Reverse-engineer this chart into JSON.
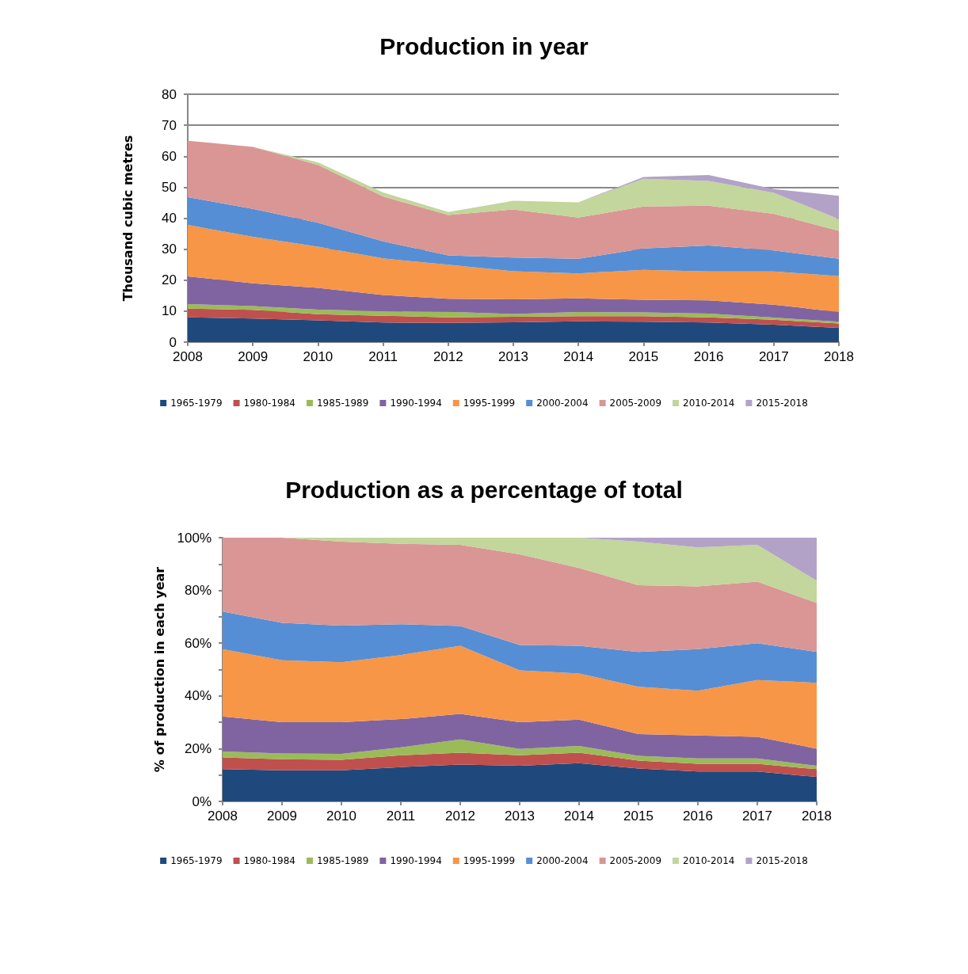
{
  "chart_data": [
    {
      "type": "area",
      "title": "Production in year",
      "ylabel": "Thousand cubic metres",
      "categories": [
        "2008",
        "2009",
        "2010",
        "2011",
        "2012",
        "2013",
        "2014",
        "2015",
        "2016",
        "2017",
        "2018"
      ],
      "stacked": true,
      "ylim": [
        0,
        80
      ],
      "yticks": [
        0,
        10,
        20,
        30,
        40,
        50,
        60,
        70,
        80
      ],
      "grid": "y",
      "legend": "bottom",
      "series": [
        {
          "name": "1965-1979",
          "color": "#1f497d",
          "values": [
            8,
            7.6,
            7,
            6.3,
            6.2,
            6.4,
            6.7,
            6.6,
            6.3,
            5.6,
            4.6
          ]
        },
        {
          "name": "1980-1984",
          "color": "#c0504d",
          "values": [
            2.8,
            2.8,
            2,
            2.2,
            1.8,
            1.8,
            1.7,
            1.8,
            1.7,
            1.6,
            1.4
          ]
        },
        {
          "name": "1985-1989",
          "color": "#9bbb59",
          "values": [
            1.5,
            1.2,
            1.5,
            1.5,
            1.8,
            0.9,
            1.3,
            1.2,
            1.2,
            0.7,
            0.6
          ]
        },
        {
          "name": "1990-1994",
          "color": "#8064a2",
          "values": [
            8.9,
            7.4,
            7,
            5.2,
            4.2,
            4.7,
            4.4,
            4.1,
            4.3,
            4.2,
            3.1
          ]
        },
        {
          "name": "1995-1999",
          "color": "#f79646",
          "values": [
            16.6,
            15,
            13.3,
            11.8,
            11,
            9.1,
            8.1,
            9.6,
            9.3,
            10.7,
            11.6
          ]
        },
        {
          "name": "2000-2004",
          "color": "#558ed5",
          "values": [
            9,
            9,
            7.7,
            5.5,
            3,
            4.4,
            4.7,
            6.9,
            8.4,
            6.8,
            5.6
          ]
        },
        {
          "name": "2005-2009",
          "color": "#d99694",
          "values": [
            18.2,
            20,
            18.7,
            14.5,
            13,
            15.5,
            13.3,
            13.6,
            12.8,
            11.8,
            9
          ]
        },
        {
          "name": "2010-2014",
          "color": "#c3d69b",
          "values": [
            0,
            0,
            0.8,
            1.3,
            1,
            2.8,
            4.9,
            8.9,
            8,
            6.8,
            3.8
          ]
        },
        {
          "name": "2015-2018",
          "color": "#b2a2c7",
          "values": [
            0,
            0,
            0,
            0,
            0,
            0,
            0,
            0.6,
            1.9,
            1.2,
            7.5
          ]
        }
      ]
    },
    {
      "type": "area",
      "title": "Production as a percentage of total",
      "ylabel": "% of production in each year",
      "categories": [
        "2008",
        "2009",
        "2010",
        "2011",
        "2012",
        "2013",
        "2014",
        "2015",
        "2016",
        "2017",
        "2018"
      ],
      "stacked": true,
      "ylim": [
        0,
        100
      ],
      "yticks": [
        {
          "value": 0,
          "label": "0%"
        },
        {
          "value": 10,
          "label": null
        },
        {
          "value": 20,
          "label": "20%"
        },
        {
          "value": 30,
          "label": null
        },
        {
          "value": 40,
          "label": "40%"
        },
        {
          "value": 50,
          "label": null
        },
        {
          "value": 60,
          "label": "60%"
        },
        {
          "value": 70,
          "label": null
        },
        {
          "value": 80,
          "label": "80%"
        },
        {
          "value": 90,
          "label": null
        },
        {
          "value": 100,
          "label": "100%"
        }
      ],
      "grid": false,
      "legend": "bottom",
      "series": [
        {
          "name": "1965-1979",
          "color": "#1f497d",
          "values": [
            12.2,
            11.8,
            11.8,
            13,
            14,
            13.5,
            14.5,
            12.5,
            11.3,
            11.3,
            9.3
          ]
        },
        {
          "name": "1980-1984",
          "color": "#c0504d",
          "values": [
            4.5,
            4.2,
            4,
            4.5,
            4.5,
            4,
            4,
            3,
            3,
            3,
            2.9
          ]
        },
        {
          "name": "1985-1989",
          "color": "#9bbb59",
          "values": [
            2.2,
            2.2,
            2.2,
            3,
            5,
            2.4,
            2.5,
            1.8,
            2,
            2,
            1.3
          ]
        },
        {
          "name": "1990-1994",
          "color": "#8064a2",
          "values": [
            13.3,
            11.8,
            12,
            10.7,
            9.7,
            10.1,
            10,
            8.2,
            8.7,
            8.2,
            6.5
          ]
        },
        {
          "name": "1995-1999",
          "color": "#f79646",
          "values": [
            25.5,
            23.5,
            22.8,
            24.3,
            25.8,
            19.7,
            17.5,
            18,
            17,
            21.5,
            25
          ]
        },
        {
          "name": "2000-2004",
          "color": "#558ed5",
          "values": [
            14.3,
            14.2,
            13.9,
            11.7,
            7.5,
            9.6,
            10.5,
            13.2,
            15.7,
            14,
            11.7
          ]
        },
        {
          "name": "2005-2009",
          "color": "#d99694",
          "values": [
            28,
            32.3,
            31.8,
            30.5,
            30.8,
            34.4,
            29.5,
            25.3,
            23.8,
            23.3,
            18.6
          ]
        },
        {
          "name": "2010-2014",
          "color": "#c3d69b",
          "values": [
            0,
            0,
            1.5,
            2.3,
            2.7,
            6.3,
            11.5,
            16.5,
            14.8,
            14,
            8.4
          ]
        },
        {
          "name": "2015-2018",
          "color": "#b2a2c7",
          "values": [
            0,
            0,
            0,
            0,
            0,
            0,
            0,
            1.5,
            3.7,
            2.7,
            16.3
          ]
        }
      ]
    }
  ]
}
